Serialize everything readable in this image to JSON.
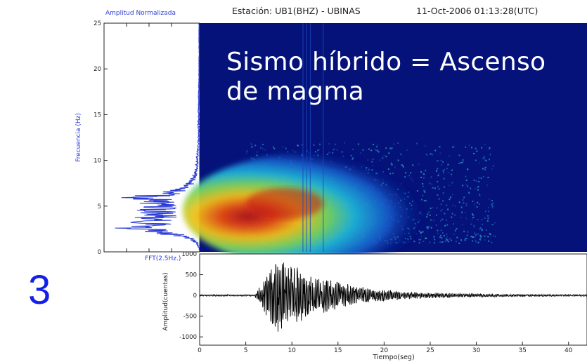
{
  "header": {
    "station": "Estación: UB1(BHZ) - UBINAS",
    "datetime": "11-Oct-2006 01:13:28(UTC)"
  },
  "overlay": {
    "title": "Sismo híbrido = Ascenso de magma"
  },
  "panel_number": "3",
  "colors": {
    "spectrogram_background": "#05127a",
    "fft_line": "#2a3bd6",
    "seismogram_line": "#000000",
    "overlay_text": "#ffffff",
    "panel_number": "#1420e8"
  },
  "chart_data": [
    {
      "type": "line",
      "name": "fft",
      "title": "Amplitud Normalizada",
      "xlabel": "FFT(2.5Hz.)",
      "ylabel": "Frecuencia (Hz)",
      "ylim": [
        0,
        25
      ],
      "yticks": [
        "0",
        "5",
        "10",
        "15",
        "20",
        "25"
      ],
      "orientation": "horizontal-amplitude",
      "points_freq": [
        0.5,
        1,
        1.5,
        2,
        2.5,
        3,
        3.5,
        4,
        4.5,
        5,
        5.5,
        6,
        6.5,
        7,
        8,
        9,
        10,
        12,
        15,
        20,
        25
      ],
      "points_amp": [
        0.02,
        0.05,
        0.15,
        0.5,
        1.0,
        0.7,
        0.85,
        0.6,
        0.75,
        0.65,
        0.8,
        0.9,
        0.45,
        0.2,
        0.1,
        0.05,
        0.04,
        0.02,
        0.02,
        0.01,
        0.01
      ]
    },
    {
      "type": "heatmap",
      "name": "spectrogram",
      "xlim": [
        0,
        42
      ],
      "ylim": [
        0,
        25
      ],
      "energy_region": {
        "t_start": 6,
        "t_peak": 9,
        "t_end": 30,
        "f_low": 1,
        "f_peak": 4.5,
        "f_high": 12
      }
    },
    {
      "type": "line",
      "name": "seismogram",
      "xlabel": "Tiempo(seg)",
      "ylabel": "Amplitud(cuentas)",
      "xlim": [
        0,
        42
      ],
      "ylim": [
        -1200,
        1000
      ],
      "xticks": [
        "0",
        "5",
        "10",
        "15",
        "20",
        "25",
        "30",
        "35",
        "40"
      ],
      "yticks": [
        "1000",
        "500",
        "0",
        "-500",
        "-1000"
      ],
      "envelope": {
        "onset": 6,
        "peak_time": 8.5,
        "peak_amp": 1000,
        "decay_end": 30
      }
    }
  ]
}
